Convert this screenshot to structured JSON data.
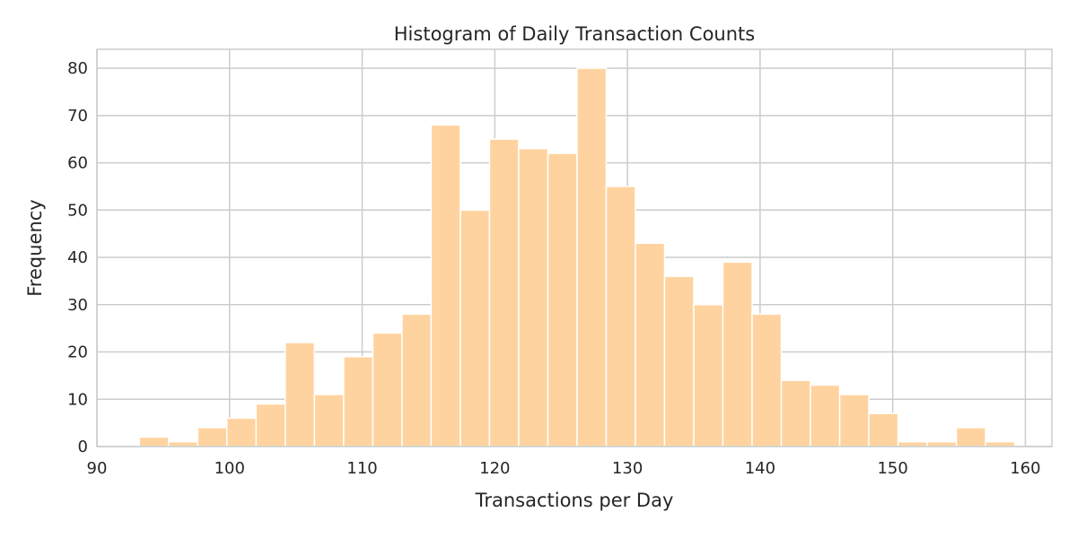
{
  "chart_data": {
    "type": "bar",
    "title": "Histogram of Daily Transaction Counts",
    "xlabel": "Transactions per Day",
    "ylabel": "Frequency",
    "xlim": [
      90,
      162
    ],
    "ylim": [
      0,
      84
    ],
    "x_ticks": [
      90,
      100,
      110,
      120,
      130,
      140,
      150,
      160
    ],
    "y_ticks": [
      0,
      10,
      20,
      30,
      40,
      50,
      60,
      70,
      80
    ],
    "grid": true,
    "bar_color": "#ffd39f",
    "bins": [
      {
        "start": 91.0,
        "end": 93.2,
        "count": 0
      },
      {
        "start": 93.2,
        "end": 95.4,
        "count": 2
      },
      {
        "start": 95.4,
        "end": 97.6,
        "count": 1
      },
      {
        "start": 97.6,
        "end": 99.8,
        "count": 4
      },
      {
        "start": 99.8,
        "end": 102.0,
        "count": 6
      },
      {
        "start": 102.0,
        "end": 104.2,
        "count": 9
      },
      {
        "start": 104.2,
        "end": 106.4,
        "count": 22
      },
      {
        "start": 106.4,
        "end": 108.6,
        "count": 11
      },
      {
        "start": 108.6,
        "end": 110.8,
        "count": 19
      },
      {
        "start": 110.8,
        "end": 113.0,
        "count": 24
      },
      {
        "start": 113.0,
        "end": 115.2,
        "count": 28
      },
      {
        "start": 115.2,
        "end": 117.4,
        "count": 68
      },
      {
        "start": 117.4,
        "end": 119.6,
        "count": 50
      },
      {
        "start": 119.6,
        "end": 121.8,
        "count": 65
      },
      {
        "start": 121.8,
        "end": 124.0,
        "count": 63
      },
      {
        "start": 124.0,
        "end": 126.2,
        "count": 62
      },
      {
        "start": 126.2,
        "end": 128.4,
        "count": 80
      },
      {
        "start": 128.4,
        "end": 130.6,
        "count": 55
      },
      {
        "start": 130.6,
        "end": 132.8,
        "count": 43
      },
      {
        "start": 132.8,
        "end": 135.0,
        "count": 36
      },
      {
        "start": 135.0,
        "end": 137.2,
        "count": 30
      },
      {
        "start": 137.2,
        "end": 139.4,
        "count": 39
      },
      {
        "start": 139.4,
        "end": 141.6,
        "count": 28
      },
      {
        "start": 141.6,
        "end": 143.8,
        "count": 14
      },
      {
        "start": 143.8,
        "end": 146.0,
        "count": 13
      },
      {
        "start": 146.0,
        "end": 148.2,
        "count": 11
      },
      {
        "start": 148.2,
        "end": 150.4,
        "count": 7
      },
      {
        "start": 150.4,
        "end": 152.6,
        "count": 1
      },
      {
        "start": 152.6,
        "end": 154.8,
        "count": 1
      },
      {
        "start": 154.8,
        "end": 157.0,
        "count": 4
      },
      {
        "start": 157.0,
        "end": 159.2,
        "count": 1
      }
    ]
  }
}
